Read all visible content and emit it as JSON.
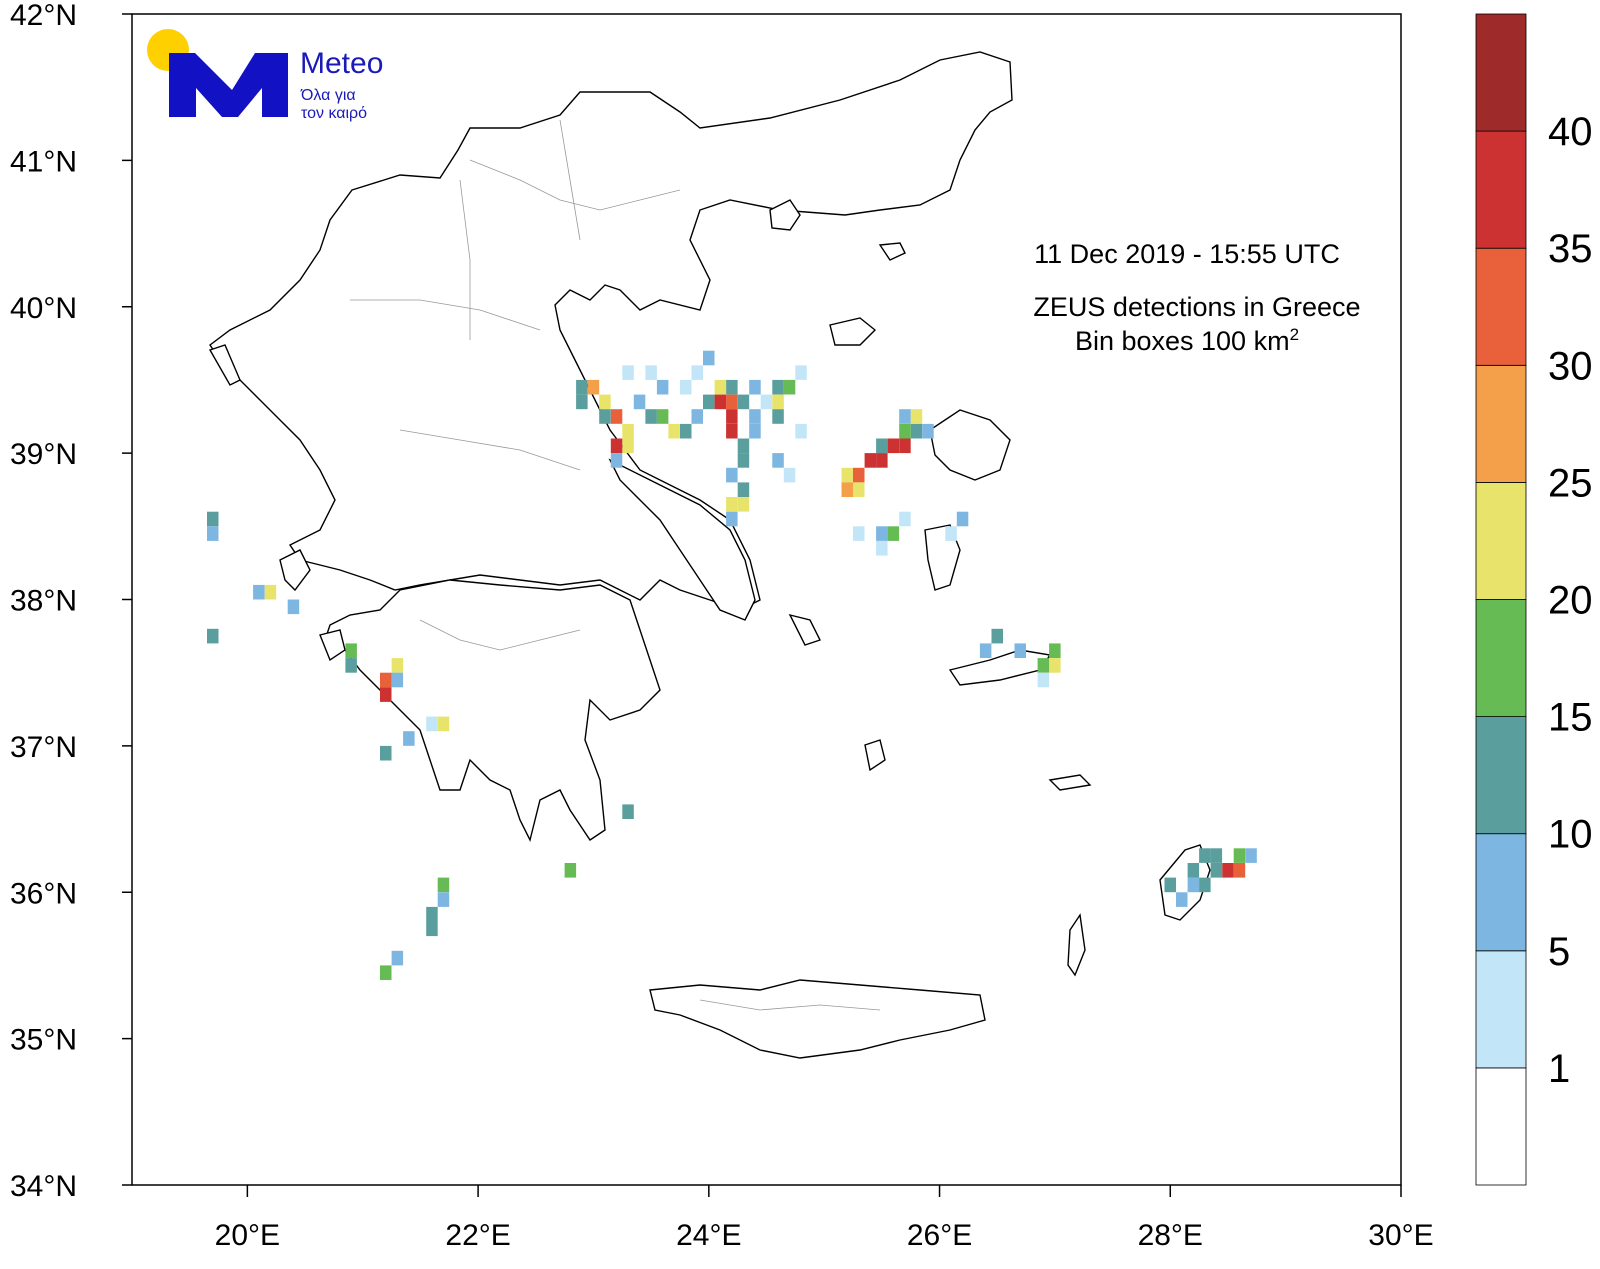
{
  "info": {
    "timestamp": "11  Dec 2019 - 15:55 UTC",
    "title_line1": "ZEUS detections in Greece",
    "title_line2_prefix": "Bin boxes 100 km",
    "title_line2_sup": "2"
  },
  "logo": {
    "brand": "Meteo",
    "tagline_1": "Όλα για",
    "tagline_2": "τον καιρό",
    "colors": {
      "sun": "#ffd000",
      "mark": "#1212c4"
    }
  },
  "chart_data": {
    "type": "heatmap",
    "x_axis": {
      "range": [
        19,
        30
      ],
      "ticks": [
        "20°E",
        "22°E",
        "24°E",
        "26°E",
        "28°E",
        "30°E"
      ],
      "tick_values": [
        20,
        22,
        24,
        26,
        28,
        30
      ]
    },
    "y_axis": {
      "range": [
        34,
        42
      ],
      "ticks": [
        "34°N",
        "35°N",
        "36°N",
        "37°N",
        "38°N",
        "39°N",
        "40°N",
        "41°N",
        "42°N"
      ],
      "tick_values": [
        34,
        35,
        36,
        37,
        38,
        39,
        40,
        41,
        42
      ]
    },
    "colorbar": {
      "labels": [
        "1",
        "5",
        "10",
        "15",
        "20",
        "25",
        "30",
        "35",
        "40"
      ],
      "colors": [
        "#ffffff",
        "#c2e6f7",
        "#7db6e1",
        "#5a9e9e",
        "#66bb55",
        "#e8e36a",
        "#f4a04b",
        "#e8613b",
        "#cd3232",
        "#9e2a2a"
      ]
    },
    "bins": [
      [
        39.55,
        23.3,
        1
      ],
      [
        39.55,
        23.5,
        1
      ],
      [
        39.45,
        23.6,
        2
      ],
      [
        39.45,
        23.8,
        1
      ],
      [
        39.55,
        23.9,
        1
      ],
      [
        39.65,
        24.0,
        2
      ],
      [
        39.45,
        24.2,
        3
      ],
      [
        39.45,
        24.4,
        2
      ],
      [
        39.35,
        24.5,
        1
      ],
      [
        39.45,
        24.6,
        3
      ],
      [
        39.45,
        24.7,
        4
      ],
      [
        39.55,
        24.8,
        1
      ],
      [
        39.35,
        22.9,
        3
      ],
      [
        39.35,
        23.1,
        5
      ],
      [
        39.25,
        23.2,
        7
      ],
      [
        39.25,
        23.1,
        3
      ],
      [
        39.15,
        23.3,
        5
      ],
      [
        39.25,
        23.5,
        3
      ],
      [
        39.25,
        23.6,
        4
      ],
      [
        39.15,
        23.7,
        5
      ],
      [
        39.15,
        23.8,
        3
      ],
      [
        39.25,
        23.9,
        2
      ],
      [
        39.35,
        24.0,
        3
      ],
      [
        39.45,
        23.0,
        6
      ],
      [
        39.45,
        22.9,
        3
      ],
      [
        39.35,
        23.4,
        2
      ],
      [
        39.45,
        24.1,
        5
      ],
      [
        39.35,
        24.2,
        7
      ],
      [
        39.25,
        24.2,
        8
      ],
      [
        39.15,
        24.2,
        8
      ],
      [
        39.35,
        24.1,
        8
      ],
      [
        39.35,
        24.3,
        3
      ],
      [
        39.25,
        24.4,
        2
      ],
      [
        39.35,
        24.6,
        5
      ],
      [
        39.05,
        23.3,
        5
      ],
      [
        39.05,
        23.2,
        8
      ],
      [
        38.95,
        23.2,
        2
      ],
      [
        38.65,
        24.2,
        5
      ],
      [
        38.65,
        24.3,
        5
      ],
      [
        38.55,
        24.2,
        2
      ],
      [
        38.75,
        24.3,
        3
      ],
      [
        38.85,
        24.2,
        2
      ],
      [
        38.95,
        24.3,
        3
      ],
      [
        38.95,
        24.6,
        2
      ],
      [
        38.85,
        24.7,
        1
      ],
      [
        39.05,
        24.3,
        3
      ],
      [
        39.15,
        24.4,
        2
      ],
      [
        39.25,
        24.6,
        3
      ],
      [
        39.15,
        24.8,
        1
      ],
      [
        39.25,
        25.8,
        5
      ],
      [
        39.25,
        25.7,
        2
      ],
      [
        39.15,
        25.8,
        3
      ],
      [
        39.15,
        25.7,
        4
      ],
      [
        39.05,
        25.6,
        8
      ],
      [
        39.05,
        25.5,
        3
      ],
      [
        38.95,
        25.5,
        8
      ],
      [
        38.95,
        25.4,
        8
      ],
      [
        38.85,
        25.3,
        7
      ],
      [
        38.85,
        25.2,
        5
      ],
      [
        38.75,
        25.2,
        6
      ],
      [
        38.75,
        25.3,
        5
      ],
      [
        39.05,
        25.7,
        8
      ],
      [
        39.15,
        25.9,
        2
      ],
      [
        38.55,
        25.7,
        1
      ],
      [
        38.45,
        25.6,
        4
      ],
      [
        38.45,
        25.5,
        2
      ],
      [
        38.35,
        25.5,
        1
      ],
      [
        38.55,
        26.2,
        2
      ],
      [
        38.45,
        26.1,
        1
      ],
      [
        38.45,
        25.3,
        1
      ],
      [
        38.05,
        20.2,
        5
      ],
      [
        38.05,
        20.1,
        2
      ],
      [
        37.95,
        20.4,
        2
      ],
      [
        37.75,
        19.7,
        3
      ],
      [
        38.55,
        19.7,
        3
      ],
      [
        38.45,
        19.7,
        2
      ],
      [
        37.65,
        20.9,
        4
      ],
      [
        37.55,
        20.9,
        3
      ],
      [
        37.45,
        21.2,
        7
      ],
      [
        37.35,
        21.2,
        8
      ],
      [
        37.55,
        21.3,
        5
      ],
      [
        37.45,
        21.3,
        2
      ],
      [
        37.15,
        21.7,
        5
      ],
      [
        37.15,
        21.6,
        1
      ],
      [
        36.95,
        21.2,
        3
      ],
      [
        37.05,
        21.4,
        2
      ],
      [
        37.75,
        26.5,
        3
      ],
      [
        37.65,
        26.4,
        2
      ],
      [
        37.65,
        26.7,
        2
      ],
      [
        37.65,
        27.0,
        4
      ],
      [
        37.55,
        27.0,
        5
      ],
      [
        37.55,
        26.9,
        4
      ],
      [
        37.45,
        26.9,
        1
      ],
      [
        36.25,
        28.3,
        3
      ],
      [
        36.25,
        28.4,
        3
      ],
      [
        36.25,
        28.6,
        4
      ],
      [
        36.25,
        28.7,
        2
      ],
      [
        36.15,
        28.5,
        8
      ],
      [
        36.15,
        28.6,
        7
      ],
      [
        36.15,
        28.4,
        3
      ],
      [
        36.05,
        28.2,
        2
      ],
      [
        36.05,
        28.3,
        3
      ],
      [
        35.95,
        28.1,
        2
      ],
      [
        36.05,
        28.0,
        3
      ],
      [
        36.15,
        28.2,
        3
      ],
      [
        36.05,
        21.7,
        4
      ],
      [
        35.95,
        21.7,
        2
      ],
      [
        35.85,
        21.6,
        3
      ],
      [
        35.75,
        21.6,
        3
      ],
      [
        35.45,
        21.2,
        4
      ],
      [
        35.55,
        21.3,
        2
      ],
      [
        36.15,
        22.8,
        4
      ],
      [
        36.55,
        23.3,
        3
      ]
    ]
  }
}
